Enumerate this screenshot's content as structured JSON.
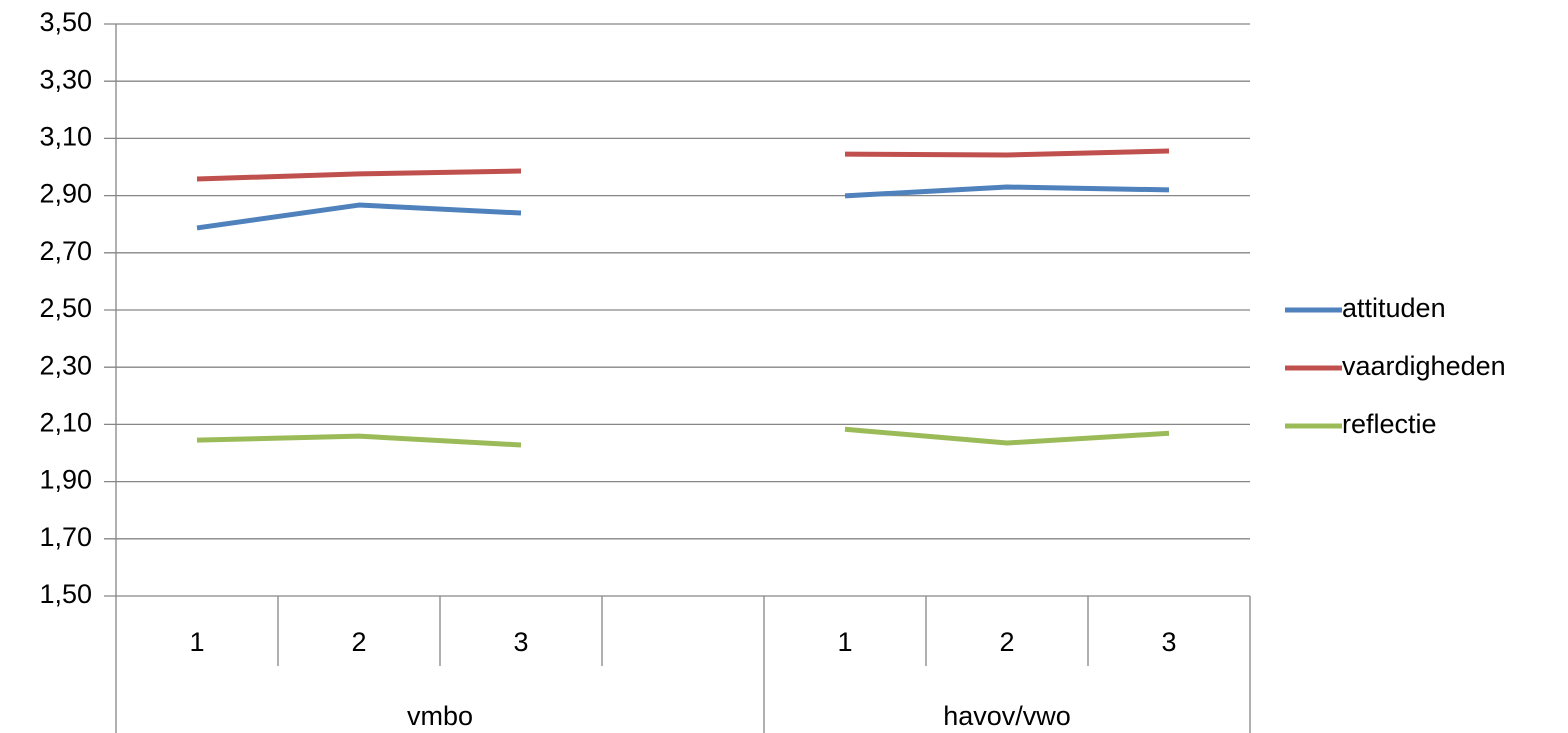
{
  "chart_data": {
    "type": "line",
    "groups": [
      {
        "name": "vmbo",
        "categories": [
          "1",
          "2",
          "3",
          null
        ]
      },
      {
        "name": "havov/vwo",
        "categories": [
          "1",
          "2",
          "3"
        ]
      }
    ],
    "series": [
      {
        "name": "attituden",
        "color": "#4f81bd",
        "values": [
          2.787,
          2.867,
          2.839,
          null,
          2.899,
          2.93,
          2.92
        ]
      },
      {
        "name": "vaardigheden",
        "color": "#c0504d",
        "values": [
          2.958,
          2.976,
          2.986,
          null,
          3.045,
          3.042,
          3.056
        ]
      },
      {
        "name": "reflectie",
        "color": "#9bbb59",
        "values": [
          2.045,
          2.059,
          2.028,
          null,
          2.083,
          2.035,
          2.069
        ]
      }
    ],
    "ylim": [
      1.5,
      3.5
    ],
    "yticks": [
      {
        "value": 1.5,
        "label": "1,50"
      },
      {
        "value": 1.7,
        "label": "1,70"
      },
      {
        "value": 1.9,
        "label": "1,90"
      },
      {
        "value": 2.1,
        "label": "2,10"
      },
      {
        "value": 2.3,
        "label": "2,30"
      },
      {
        "value": 2.5,
        "label": "2,50"
      },
      {
        "value": 2.7,
        "label": "2,70"
      },
      {
        "value": 2.9,
        "label": "2,90"
      },
      {
        "value": 3.1,
        "label": "3,10"
      },
      {
        "value": 3.3,
        "label": "3,30"
      },
      {
        "value": 3.5,
        "label": "3,50"
      }
    ],
    "grid": true,
    "legend": "right"
  }
}
